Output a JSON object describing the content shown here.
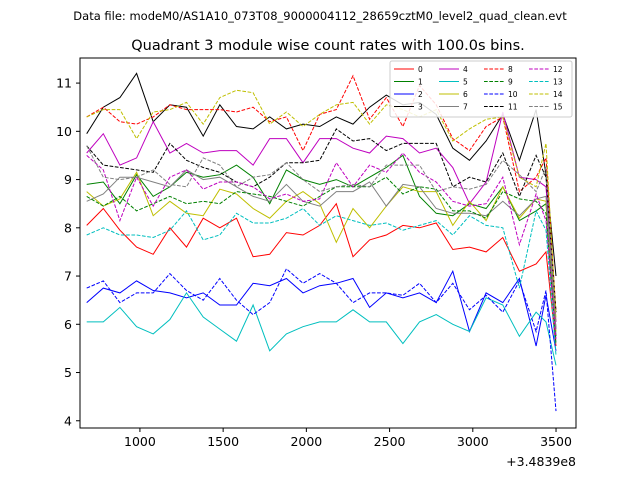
{
  "header": {
    "datafile": "Data file: modeM0/AS1A10_073T08_9000004112_28659cztM0_level2_quad_clean.evt"
  },
  "chart_data": {
    "type": "line",
    "title": "Quadrant 3 module wise count rates with 100.0s bins.",
    "xlabel": "",
    "ylabel": "",
    "x_offset_label": "+3.4839e8",
    "xlim": [
      640,
      3620
    ],
    "ylim": [
      3.85,
      11.52
    ],
    "xticks": [
      1000,
      1500,
      2000,
      2500,
      3000,
      3500
    ],
    "yticks": [
      4,
      5,
      6,
      7,
      8,
      9,
      10,
      11
    ],
    "x": [
      680,
      780,
      880,
      980,
      1080,
      1180,
      1280,
      1380,
      1480,
      1580,
      1680,
      1780,
      1880,
      1980,
      2080,
      2180,
      2280,
      2380,
      2480,
      2580,
      2680,
      2780,
      2880,
      2980,
      3080,
      3180,
      3280,
      3380,
      3440,
      3500
    ],
    "legend_position": "top-right",
    "series": [
      {
        "name": "0",
        "color": "#ff0000",
        "dash": "solid",
        "values": [
          8.05,
          8.4,
          7.95,
          7.6,
          7.45,
          8.0,
          7.6,
          8.2,
          8.0,
          8.2,
          7.4,
          7.45,
          7.9,
          7.85,
          8.05,
          8.5,
          7.4,
          7.75,
          7.85,
          8.05,
          8.0,
          8.1,
          7.55,
          7.6,
          7.5,
          7.8,
          7.1,
          7.25,
          7.5,
          5.55
        ]
      },
      {
        "name": "1",
        "color": "#008000",
        "dash": "solid",
        "values": [
          8.9,
          8.95,
          8.5,
          9.1,
          8.65,
          8.85,
          9.15,
          9.05,
          9.1,
          9.3,
          9.05,
          8.5,
          9.2,
          9.0,
          8.9,
          9.0,
          8.85,
          9.05,
          9.25,
          9.5,
          8.65,
          8.3,
          8.25,
          8.5,
          8.4,
          8.85,
          8.15,
          8.35,
          8.5,
          5.75
        ]
      },
      {
        "name": "2",
        "color": "#0000ff",
        "dash": "solid",
        "values": [
          6.45,
          6.75,
          6.65,
          6.9,
          6.7,
          6.65,
          6.55,
          6.65,
          6.4,
          6.4,
          6.85,
          6.8,
          6.95,
          6.65,
          6.8,
          6.85,
          6.95,
          6.35,
          6.65,
          6.55,
          6.65,
          6.45,
          7.1,
          5.85,
          6.65,
          6.45,
          6.95,
          5.55,
          6.6,
          5.45
        ]
      },
      {
        "name": "3",
        "color": "#000000",
        "dash": "solid",
        "values": [
          9.95,
          10.5,
          10.7,
          11.2,
          10.2,
          10.55,
          10.5,
          9.9,
          10.55,
          10.1,
          10.05,
          10.3,
          10.05,
          10.15,
          10.1,
          10.3,
          10.15,
          10.5,
          10.75,
          10.55,
          10.6,
          10.35,
          9.65,
          9.4,
          9.8,
          10.35,
          9.4,
          10.45,
          9.1,
          7.0
        ]
      },
      {
        "name": "4",
        "color": "#bf00bf",
        "dash": "solid",
        "values": [
          9.55,
          9.95,
          9.3,
          9.45,
          10.2,
          9.55,
          9.75,
          9.55,
          9.6,
          9.6,
          9.3,
          9.85,
          9.85,
          9.35,
          9.85,
          9.85,
          9.65,
          9.55,
          9.9,
          9.85,
          9.55,
          9.65,
          9.25,
          8.5,
          8.95,
          10.4,
          9.05,
          9.0,
          8.85,
          6.05
        ]
      },
      {
        "name": "5",
        "color": "#00bfbf",
        "dash": "solid",
        "values": [
          6.05,
          6.05,
          6.35,
          5.95,
          5.8,
          6.1,
          6.65,
          6.15,
          5.9,
          5.65,
          6.4,
          5.45,
          5.8,
          5.95,
          6.05,
          6.05,
          6.3,
          6.05,
          6.05,
          5.6,
          6.05,
          6.2,
          6.0,
          5.85,
          6.55,
          6.4,
          5.75,
          6.25,
          6.05,
          5.15
        ]
      },
      {
        "name": "6",
        "color": "#bfbf00",
        "dash": "solid",
        "values": [
          8.75,
          8.45,
          8.6,
          9.15,
          8.25,
          8.55,
          8.3,
          8.25,
          8.8,
          8.7,
          8.4,
          8.2,
          8.55,
          8.75,
          8.5,
          7.7,
          8.4,
          8.0,
          8.45,
          8.85,
          8.75,
          8.75,
          8.05,
          8.55,
          8.15,
          8.85,
          8.2,
          8.6,
          8.55,
          5.85
        ]
      },
      {
        "name": "7",
        "color": "#808080",
        "dash": "solid",
        "values": [
          8.55,
          8.7,
          9.05,
          9.05,
          8.95,
          8.85,
          9.2,
          9.0,
          9.05,
          8.85,
          8.65,
          8.55,
          8.9,
          8.55,
          8.45,
          8.75,
          8.75,
          8.95,
          8.45,
          8.9,
          8.85,
          8.4,
          8.3,
          8.3,
          8.25,
          8.55,
          8.25,
          8.6,
          8.65,
          5.9
        ]
      },
      {
        "name": "8",
        "color": "#ff0000",
        "dash": "dashed",
        "values": [
          10.3,
          10.5,
          10.2,
          10.15,
          10.3,
          10.55,
          10.45,
          10.45,
          10.45,
          10.4,
          10.5,
          10.2,
          10.3,
          9.6,
          10.35,
          10.45,
          11.15,
          10.25,
          10.7,
          10.1,
          10.95,
          10.55,
          9.85,
          9.6,
          10.1,
          10.3,
          8.75,
          9.05,
          9.45,
          6.25
        ]
      },
      {
        "name": "9",
        "color": "#008000",
        "dash": "dashed",
        "values": [
          8.65,
          8.45,
          8.65,
          8.35,
          8.5,
          8.65,
          8.5,
          8.55,
          8.5,
          8.75,
          8.7,
          8.65,
          8.55,
          8.45,
          8.65,
          8.85,
          8.85,
          8.85,
          9.05,
          8.7,
          8.85,
          8.8,
          8.35,
          8.35,
          8.2,
          8.75,
          8.6,
          8.55,
          8.3,
          5.6
        ]
      },
      {
        "name": "10",
        "color": "#0000ff",
        "dash": "dashed",
        "values": [
          6.75,
          6.9,
          6.45,
          6.65,
          6.65,
          7.05,
          6.7,
          6.5,
          6.95,
          6.5,
          6.2,
          6.45,
          7.15,
          6.85,
          7.05,
          6.85,
          6.45,
          6.65,
          6.65,
          6.6,
          6.85,
          6.45,
          6.85,
          6.3,
          6.6,
          6.25,
          6.9,
          5.85,
          6.7,
          4.2
        ]
      },
      {
        "name": "11",
        "color": "#000000",
        "dash": "dashed",
        "values": [
          9.7,
          9.3,
          9.25,
          9.2,
          9.15,
          9.75,
          9.4,
          9.25,
          9.15,
          8.95,
          8.85,
          9.05,
          9.35,
          9.35,
          9.4,
          10.05,
          9.8,
          9.85,
          9.6,
          9.75,
          9.75,
          9.75,
          8.85,
          9.05,
          8.95,
          9.55,
          8.65,
          9.5,
          9.05,
          6.25
        ]
      },
      {
        "name": "12",
        "color": "#bf00bf",
        "dash": "dashed",
        "values": [
          9.5,
          9.2,
          8.15,
          9.05,
          8.45,
          9.05,
          9.2,
          8.8,
          8.95,
          8.95,
          8.85,
          8.6,
          8.7,
          8.55,
          8.6,
          9.35,
          8.85,
          9.3,
          9.15,
          9.55,
          9.15,
          8.95,
          8.55,
          8.45,
          8.5,
          9.05,
          7.65,
          8.7,
          8.15,
          5.7
        ]
      },
      {
        "name": "13",
        "color": "#00bfbf",
        "dash": "dashed",
        "values": [
          7.85,
          8.0,
          7.85,
          7.85,
          7.8,
          7.95,
          8.35,
          7.75,
          7.85,
          8.3,
          8.1,
          8.1,
          8.2,
          8.4,
          8.05,
          8.25,
          8.15,
          8.05,
          8.1,
          7.95,
          8.05,
          8.15,
          7.85,
          8.25,
          8.05,
          8.0,
          6.75,
          8.35,
          7.95,
          5.35
        ]
      },
      {
        "name": "14",
        "color": "#bfbf00",
        "dash": "dashed",
        "values": [
          10.3,
          10.45,
          10.45,
          9.85,
          10.4,
          10.45,
          10.6,
          10.15,
          10.7,
          10.85,
          10.8,
          10.15,
          10.4,
          10.1,
          10.35,
          10.55,
          10.6,
          10.15,
          10.55,
          10.45,
          10.3,
          10.45,
          9.8,
          10.05,
          10.25,
          10.3,
          9.05,
          8.85,
          9.75,
          6.1
        ]
      },
      {
        "name": "15",
        "color": "#808080",
        "dash": "dashed",
        "values": [
          9.7,
          9.05,
          9.0,
          9.05,
          9.2,
          8.9,
          8.85,
          9.45,
          9.3,
          8.85,
          9.05,
          9.1,
          9.35,
          9.0,
          8.75,
          8.85,
          8.9,
          8.85,
          9.3,
          9.3,
          9.3,
          8.75,
          8.85,
          8.8,
          8.9,
          9.4,
          9.1,
          8.75,
          9.25,
          5.9
        ]
      }
    ]
  }
}
